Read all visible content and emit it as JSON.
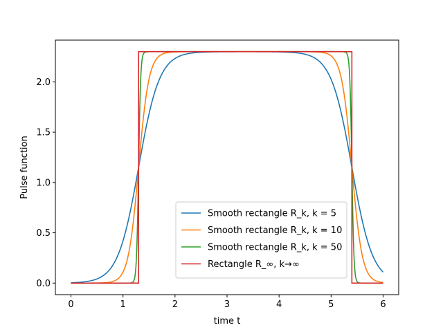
{
  "chart_data": {
    "type": "line",
    "xlabel": "time t",
    "ylabel": "Pulse function",
    "xlim": [
      -0.3,
      6.3
    ],
    "ylim": [
      -0.115,
      2.415
    ],
    "xticks": [
      0,
      1,
      2,
      3,
      4,
      5,
      6
    ],
    "yticks": [
      0.0,
      0.5,
      1.0,
      1.5,
      2.0
    ],
    "grid": false,
    "legend_position": "lower-center",
    "pulse": {
      "start": 1.3,
      "end": 5.4,
      "height": 2.3,
      "t_min": 0,
      "t_max": 6
    },
    "series": [
      {
        "name": "Smooth rectangle R_k, k = 5",
        "k": 5,
        "color": "#1f77b4",
        "x": [
          0,
          0.5,
          1.0,
          1.3,
          1.6,
          2.0,
          3.0,
          4.5,
          5.0,
          5.4,
          5.8,
          6.0
        ],
        "y": [
          0.003,
          0.04,
          0.42,
          1.15,
          1.88,
          2.23,
          2.3,
          2.27,
          2.0,
          1.15,
          0.31,
          0.11
        ]
      },
      {
        "name": "Smooth rectangle R_k, k = 10",
        "k": 10,
        "color": "#ff7f0e",
        "x": [
          0,
          0.8,
          1.0,
          1.2,
          1.3,
          1.4,
          1.6,
          2.0,
          5.0,
          5.2,
          5.4,
          5.6,
          6.0
        ],
        "y": [
          0.0,
          0.015,
          0.11,
          0.62,
          1.15,
          1.68,
          2.19,
          2.3,
          2.28,
          1.97,
          1.15,
          0.33,
          0.006
        ]
      },
      {
        "name": "Smooth rectangle R_k, k = 50",
        "k": 50,
        "color": "#2ca02c",
        "x": [
          0,
          1.25,
          1.3,
          1.35,
          1.4,
          5.3,
          5.35,
          5.4,
          5.45,
          5.5,
          6.0
        ],
        "y": [
          0.0,
          0.18,
          1.15,
          2.12,
          2.29,
          2.3,
          2.12,
          1.15,
          0.18,
          0.02,
          0.0
        ]
      },
      {
        "name": "Rectangle R_∞, k→∞",
        "color": "#d62728",
        "x": [
          0,
          1.3,
          1.3,
          5.4,
          5.4,
          6.0
        ],
        "y": [
          0.0,
          0.0,
          2.3,
          2.3,
          0.0,
          0.0
        ]
      }
    ]
  }
}
